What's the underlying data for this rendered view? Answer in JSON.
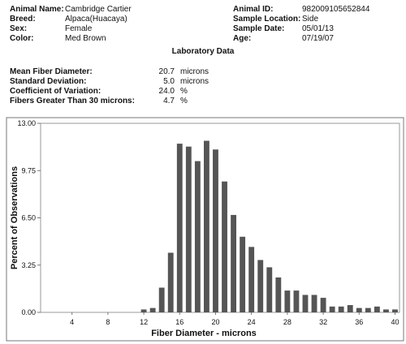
{
  "animal_fields": [
    {
      "label": "Animal Name:",
      "value": "Cambridge Cartier"
    },
    {
      "label": "Breed:",
      "value": "Alpaca(Huacaya)"
    },
    {
      "label": "Sex:",
      "value": "Female"
    },
    {
      "label": "Color:",
      "value": "Med Brown"
    }
  ],
  "sample_fields": [
    {
      "label": "Animal ID:",
      "value": "982009105652844"
    },
    {
      "label": "Sample Location:",
      "value": "Side"
    },
    {
      "label": "Sample Date:",
      "value": "05/01/13"
    },
    {
      "label": "Age:",
      "value": "07/19/07"
    }
  ],
  "lab_title": "Laboratory Data",
  "lab_rows": [
    {
      "label": "Mean Fiber Diameter:",
      "value": "20.7",
      "unit": "microns"
    },
    {
      "label": "Standard Deviation:",
      "value": "5.0",
      "unit": "microns"
    },
    {
      "label": "Coefficient of Variation:",
      "value": "24.0",
      "unit": "%"
    },
    {
      "label": "Fibers Greater Than 30 microns:",
      "value": "4.7",
      "unit": "%"
    }
  ],
  "chart_data": {
    "type": "bar",
    "x_label": "Fiber Diameter - microns",
    "y_label": "Percent of Observations",
    "x": [
      12,
      13,
      14,
      15,
      16,
      17,
      18,
      19,
      20,
      21,
      22,
      23,
      24,
      25,
      26,
      27,
      28,
      29,
      30,
      31,
      32,
      33,
      34,
      35,
      36,
      37,
      38,
      39,
      40
    ],
    "values": [
      0.2,
      0.3,
      1.7,
      4.1,
      11.6,
      11.4,
      10.4,
      11.8,
      11.2,
      9.0,
      6.7,
      5.2,
      4.5,
      3.6,
      3.1,
      2.4,
      1.5,
      1.5,
      1.2,
      1.2,
      1.0,
      0.4,
      0.4,
      0.5,
      0.3,
      0.3,
      0.4,
      0.2,
      0.2
    ],
    "color": "#555555",
    "xlim": [
      0.5,
      40.5
    ],
    "xticks": [
      4,
      8,
      12,
      16,
      20,
      24,
      28,
      32,
      36,
      40
    ],
    "ylim": [
      0,
      13
    ],
    "yticks": [
      {
        "value": 0,
        "label": "0.00"
      },
      3.25,
      {
        "value": 6.5,
        "label": "6.50"
      },
      9.75,
      {
        "value": 13,
        "label": "13.00"
      }
    ]
  }
}
